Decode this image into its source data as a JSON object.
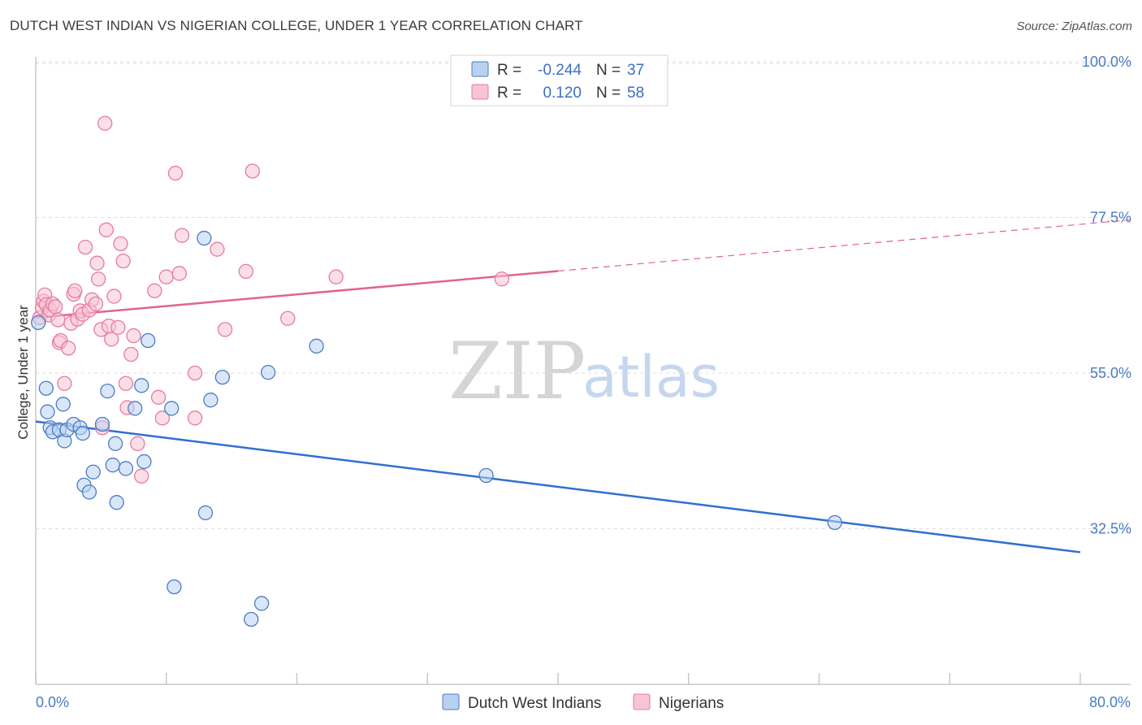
{
  "title": "DUTCH WEST INDIAN VS NIGERIAN COLLEGE, UNDER 1 YEAR CORRELATION CHART",
  "source": "Source: ZipAtlas.com",
  "watermark": {
    "zip": "ZIP",
    "atlas": "atlas"
  },
  "colors": {
    "blue": "#4a7cc4",
    "blue_fill": "#b9d1f0",
    "blue_line": "#2f6fd1",
    "pink": "#e87aa0",
    "pink_fill": "#f7c4d4",
    "pink_line": "#e2638f"
  },
  "legend": {
    "rows": [
      {
        "r_label": "R =",
        "r_value": "-0.244",
        "n_label": "N =",
        "n_value": "37"
      },
      {
        "r_label": "R =",
        "r_value": "0.120",
        "n_label": "N =",
        "n_value": "58"
      }
    ]
  },
  "bottom_legend": [
    "Dutch West Indians",
    "Nigerians"
  ],
  "chart_data": {
    "type": "scatter",
    "xlabel": "",
    "ylabel": "College, Under 1 year",
    "xlim": [
      0,
      80
    ],
    "ylim": [
      10,
      102
    ],
    "x_tick_labels": [
      "0.0%",
      "80.0%"
    ],
    "y_ticks": [
      32.5,
      55.0,
      77.5,
      100.0
    ],
    "y_tick_labels": [
      "32.5%",
      "55.0%",
      "77.5%",
      "100.0%"
    ],
    "grid": true,
    "series": [
      {
        "name": "Dutch West Indians",
        "points": [
          [
            0.2,
            62.3
          ],
          [
            0.8,
            52.8
          ],
          [
            0.9,
            49.4
          ],
          [
            1.1,
            47.1
          ],
          [
            1.3,
            46.5
          ],
          [
            1.8,
            46.8
          ],
          [
            2.1,
            50.5
          ],
          [
            2.2,
            45.2
          ],
          [
            2.4,
            46.8
          ],
          [
            2.9,
            47.6
          ],
          [
            3.4,
            47.1
          ],
          [
            3.6,
            46.3
          ],
          [
            3.7,
            38.8
          ],
          [
            4.1,
            37.8
          ],
          [
            4.4,
            40.7
          ],
          [
            5.1,
            47.6
          ],
          [
            5.5,
            52.4
          ],
          [
            5.9,
            41.7
          ],
          [
            6.1,
            44.8
          ],
          [
            6.2,
            36.3
          ],
          [
            6.9,
            41.2
          ],
          [
            7.6,
            49.9
          ],
          [
            8.1,
            53.2
          ],
          [
            8.3,
            42.2
          ],
          [
            8.6,
            59.7
          ],
          [
            10.4,
            49.9
          ],
          [
            10.6,
            24.1
          ],
          [
            12.9,
            74.5
          ],
          [
            13.0,
            34.8
          ],
          [
            13.4,
            51.1
          ],
          [
            14.3,
            54.4
          ],
          [
            16.5,
            19.4
          ],
          [
            17.3,
            21.7
          ],
          [
            17.8,
            55.1
          ],
          [
            21.5,
            58.9
          ],
          [
            34.5,
            40.2
          ],
          [
            61.2,
            33.4
          ]
        ],
        "trend": {
          "x": [
            0,
            80
          ],
          "y": [
            48.0,
            29.1
          ]
        }
      },
      {
        "name": "Nigerians",
        "points": [
          [
            0.3,
            63.0
          ],
          [
            0.5,
            64.4
          ],
          [
            0.6,
            65.4
          ],
          [
            0.7,
            66.3
          ],
          [
            0.8,
            64.9
          ],
          [
            1.0,
            63.4
          ],
          [
            1.1,
            64.1
          ],
          [
            1.3,
            65.0
          ],
          [
            1.5,
            64.6
          ],
          [
            1.7,
            62.7
          ],
          [
            1.8,
            59.4
          ],
          [
            1.9,
            59.7
          ],
          [
            2.2,
            53.5
          ],
          [
            2.5,
            58.6
          ],
          [
            2.7,
            62.2
          ],
          [
            2.9,
            66.4
          ],
          [
            3.0,
            66.9
          ],
          [
            3.2,
            62.8
          ],
          [
            3.4,
            64.0
          ],
          [
            3.6,
            63.5
          ],
          [
            3.8,
            73.2
          ],
          [
            4.1,
            64.1
          ],
          [
            4.3,
            65.6
          ],
          [
            4.6,
            65.0
          ],
          [
            4.7,
            70.9
          ],
          [
            4.8,
            68.6
          ],
          [
            5.0,
            61.3
          ],
          [
            5.1,
            47.1
          ],
          [
            5.3,
            91.1
          ],
          [
            5.4,
            75.7
          ],
          [
            5.6,
            61.8
          ],
          [
            5.8,
            59.9
          ],
          [
            6.0,
            66.1
          ],
          [
            6.3,
            61.6
          ],
          [
            6.5,
            73.7
          ],
          [
            6.7,
            71.2
          ],
          [
            6.9,
            53.5
          ],
          [
            7.0,
            50.0
          ],
          [
            7.3,
            57.7
          ],
          [
            7.5,
            60.4
          ],
          [
            7.8,
            44.8
          ],
          [
            8.1,
            40.1
          ],
          [
            9.1,
            66.9
          ],
          [
            9.4,
            51.5
          ],
          [
            9.7,
            48.5
          ],
          [
            10.0,
            68.9
          ],
          [
            10.7,
            83.9
          ],
          [
            11.0,
            69.4
          ],
          [
            11.2,
            74.9
          ],
          [
            12.2,
            55.0
          ],
          [
            12.2,
            48.5
          ],
          [
            13.9,
            72.9
          ],
          [
            14.5,
            61.3
          ],
          [
            16.1,
            69.7
          ],
          [
            16.6,
            84.2
          ],
          [
            19.3,
            62.9
          ],
          [
            23.0,
            68.9
          ],
          [
            35.7,
            68.6
          ]
        ],
        "trend": {
          "x": [
            0,
            80
          ],
          "y": [
            63.0,
            76.5
          ],
          "solid_until_x": 40
        }
      }
    ]
  }
}
